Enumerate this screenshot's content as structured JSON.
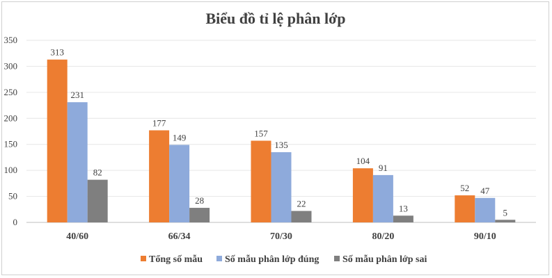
{
  "chart_data": {
    "type": "bar",
    "title": "Biểu đồ tỉ lệ phân lớp",
    "categories": [
      "40/60",
      "66/34",
      "70/30",
      "80/20",
      "90/10"
    ],
    "series": [
      {
        "name": "Tổng số mẫu",
        "color": "#ed7d31",
        "values": [
          313,
          177,
          157,
          104,
          52
        ]
      },
      {
        "name": "Số mẫu phân lớp đúng",
        "color": "#8eaadb",
        "values": [
          231,
          149,
          135,
          91,
          47
        ]
      },
      {
        "name": "Số mẫu phân lớp sai",
        "color": "#7f7f7f",
        "values": [
          82,
          28,
          22,
          13,
          5
        ]
      }
    ],
    "ylim": [
      0,
      350
    ],
    "yticks": [
      0,
      50,
      100,
      150,
      200,
      250,
      300,
      350
    ],
    "grid": true,
    "legend": "bottom"
  }
}
